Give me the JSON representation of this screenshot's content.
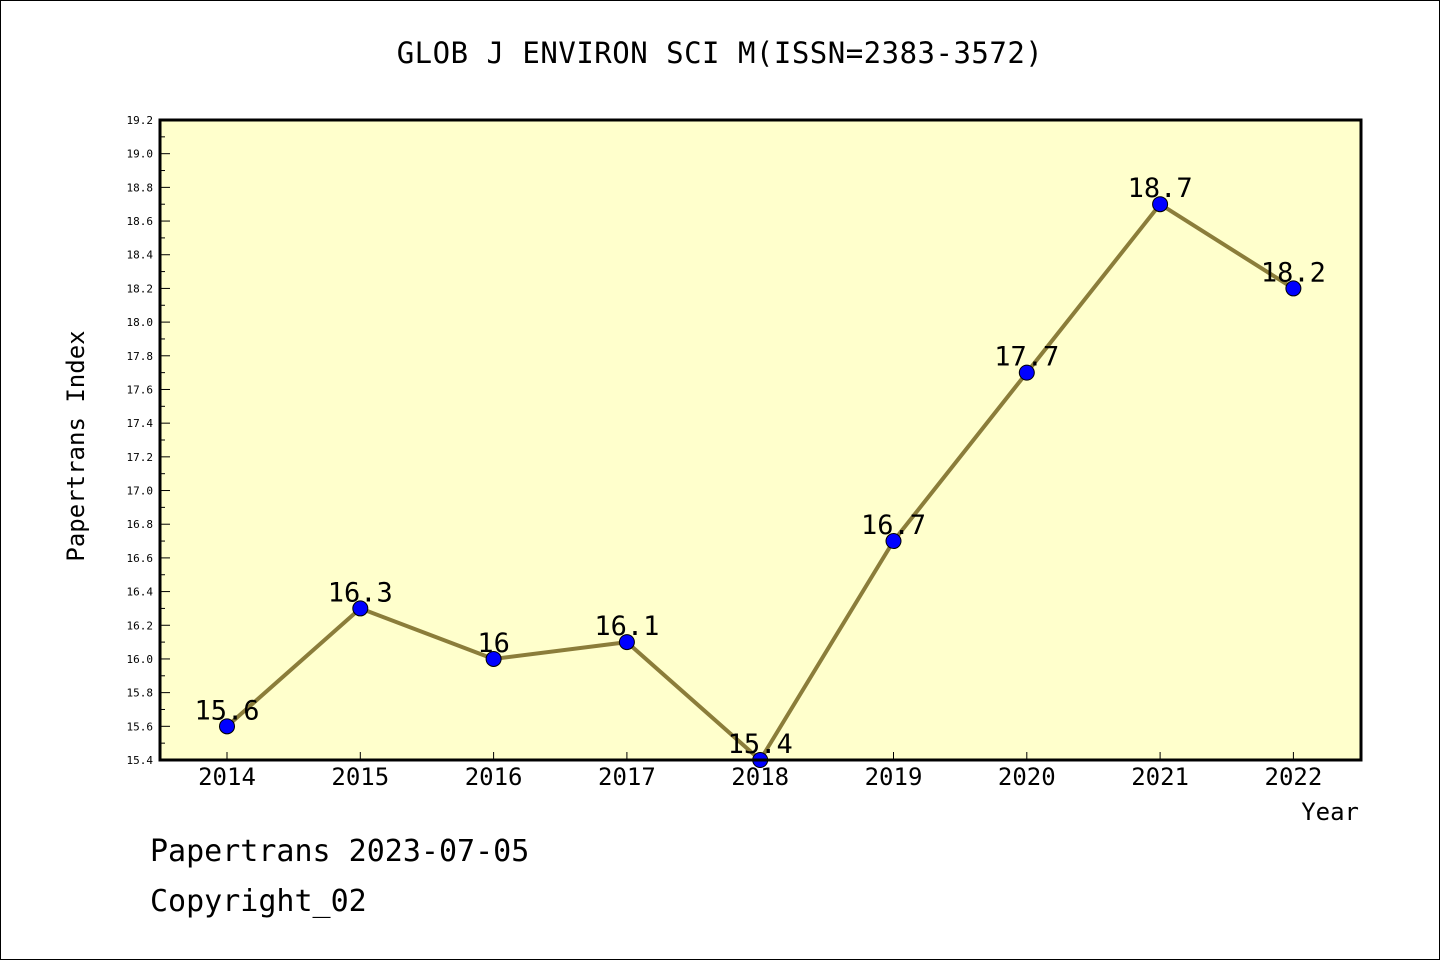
{
  "chart_data": {
    "type": "line",
    "title": "GLOB J ENVIRON SCI M(ISSN=2383-3572)",
    "xlabel": "Year",
    "ylabel": "Papertrans Index",
    "x": [
      "2014",
      "2015",
      "2016",
      "2017",
      "2018",
      "2019",
      "2020",
      "2021",
      "2022"
    ],
    "values": [
      15.6,
      16.3,
      16.0,
      16.1,
      15.4,
      16.7,
      17.7,
      18.7,
      18.2
    ],
    "data_labels": [
      "15.6",
      "16.3",
      "16",
      "16.1",
      "15.4",
      "16.7",
      "17.7",
      "18.7",
      "18.2"
    ],
    "ylim": [
      15.4,
      19.2
    ],
    "ytick_labels": [
      "15.4",
      "15.6",
      "15.8",
      "16.0",
      "16.2",
      "16.4",
      "16.6",
      "16.8",
      "17.0",
      "17.2",
      "17.4",
      "17.6",
      "17.8",
      "18.0",
      "18.2",
      "18.4",
      "18.6",
      "18.8",
      "19.0",
      "19.2"
    ],
    "grid": false,
    "line_color": "#8b7d3a",
    "marker_color": "#0000ff",
    "plot_background": "#ffffcc"
  },
  "footer": {
    "date_text": "Papertrans 2023-07-05",
    "copyright_text": "Copyright_02"
  }
}
